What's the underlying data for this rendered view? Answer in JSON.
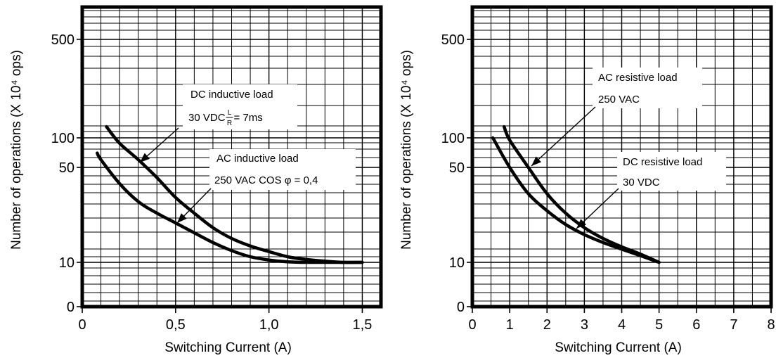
{
  "chart_data": [
    {
      "type": "line",
      "xlabel": "Switching Current (A)",
      "ylabel": "Number of operations (X 10⁴ ops)",
      "xlim": [
        0,
        1.6
      ],
      "x_ticks": [
        0,
        0.5,
        1.0,
        1.5
      ],
      "x_tick_labels": [
        "0",
        "0,5",
        "1,0",
        "1,5"
      ],
      "y_ticks": [
        0,
        10,
        50,
        100,
        500
      ],
      "y_tick_labels": [
        "0",
        "10",
        "50",
        "100",
        "500"
      ],
      "grid": true,
      "series": [
        {
          "name": "DC inductive load",
          "x": [
            0.13,
            0.2,
            0.3,
            0.4,
            0.5,
            0.6,
            0.7,
            0.8,
            0.9,
            1.0,
            1.1,
            1.2,
            1.3,
            1.4,
            1.5
          ],
          "y": [
            120,
            88,
            60,
            42,
            30,
            23,
            18,
            15,
            13.2,
            12,
            11,
            10.5,
            10.2,
            10,
            10
          ]
        },
        {
          "name": "AC inductive load",
          "x": [
            0.08,
            0.1,
            0.2,
            0.3,
            0.4,
            0.5,
            0.6,
            0.7,
            0.8,
            0.9,
            1.0,
            1.1,
            1.2,
            1.3,
            1.4,
            1.5
          ],
          "y": [
            70,
            60,
            38,
            28,
            23,
            19.5,
            16.5,
            14,
            12.2,
            11,
            10.4,
            10.1,
            10,
            10,
            10,
            10
          ]
        }
      ],
      "annotations": [
        {
          "lines": [
            "DC inductive load",
            "30 VDC L/R = 7ms"
          ],
          "target_series": "DC inductive load"
        },
        {
          "lines": [
            "AC inductive load",
            "250 VAC COS φ = 0,4"
          ],
          "target_series": "AC inductive load"
        }
      ]
    },
    {
      "type": "line",
      "xlabel": "Switching Current (A)",
      "ylabel": "Number of operations (X 10⁴ ops)",
      "xlim": [
        0,
        8
      ],
      "x_ticks": [
        0,
        1,
        2,
        3,
        4,
        5,
        6,
        7,
        8
      ],
      "x_tick_labels": [
        "0",
        "1",
        "2",
        "3",
        "4",
        "5",
        "6",
        "7",
        "8"
      ],
      "y_ticks": [
        0,
        10,
        50,
        100,
        500
      ],
      "y_tick_labels": [
        "0",
        "10",
        "50",
        "100",
        "500"
      ],
      "grid": true,
      "series": [
        {
          "name": "AC resistive load",
          "x": [
            0.85,
            1.0,
            1.5,
            2.0,
            2.5,
            3.0,
            3.5,
            4.0,
            4.5,
            5.0
          ],
          "y": [
            120,
            95,
            50,
            32,
            23,
            18,
            15,
            13,
            11.5,
            10
          ]
        },
        {
          "name": "DC resistive load",
          "x": [
            0.55,
            1.0,
            1.5,
            2.0,
            2.5,
            3.0,
            3.5,
            4.0,
            4.5,
            5.0
          ],
          "y": [
            100,
            50,
            32,
            24,
            19,
            16,
            14,
            12.5,
            11.2,
            10
          ]
        }
      ],
      "annotations": [
        {
          "lines": [
            "AC resistive load",
            "250 VAC"
          ],
          "target_series": "AC resistive load"
        },
        {
          "lines": [
            "DC resistive load",
            "30 VDC"
          ],
          "target_series": "DC resistive load"
        }
      ]
    }
  ]
}
